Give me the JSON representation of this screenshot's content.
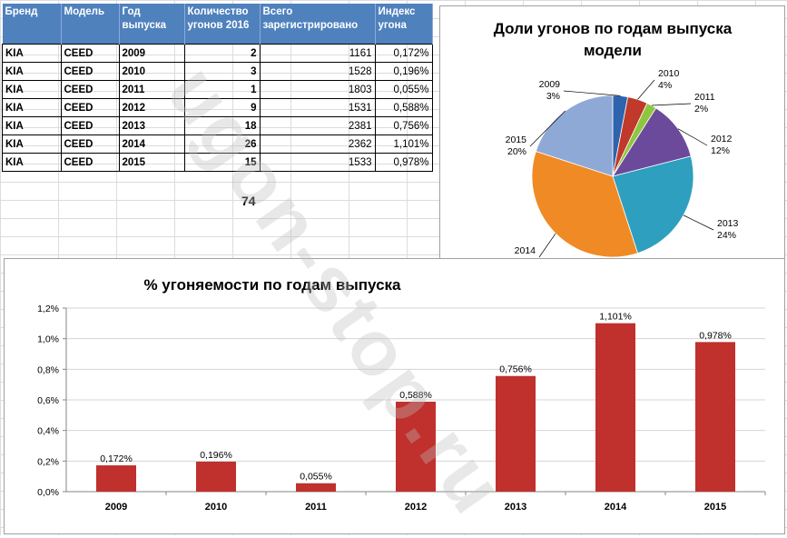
{
  "table": {
    "headers": [
      "Бренд",
      "Модель",
      "Год выпуска",
      "Количество угонов 2016",
      "Всего зарегистрировано",
      "Индекс угона"
    ],
    "rows": [
      {
        "brand": "KIA",
        "model": "CEED",
        "year": "2009",
        "thefts": "2",
        "registered": "1161",
        "index": "0,172%"
      },
      {
        "brand": "KIA",
        "model": "CEED",
        "year": "2010",
        "thefts": "3",
        "registered": "1528",
        "index": "0,196%"
      },
      {
        "brand": "KIA",
        "model": "CEED",
        "year": "2011",
        "thefts": "1",
        "registered": "1803",
        "index": "0,055%"
      },
      {
        "brand": "KIA",
        "model": "CEED",
        "year": "2012",
        "thefts": "9",
        "registered": "1531",
        "index": "0,588%"
      },
      {
        "brand": "KIA",
        "model": "CEED",
        "year": "2013",
        "thefts": "18",
        "registered": "2381",
        "index": "0,756%"
      },
      {
        "brand": "KIA",
        "model": "CEED",
        "year": "2014",
        "thefts": "26",
        "registered": "2362",
        "index": "1,101%"
      },
      {
        "brand": "KIA",
        "model": "CEED",
        "year": "2015",
        "thefts": "15",
        "registered": "1533",
        "index": "0,978%"
      }
    ],
    "total": "74"
  },
  "watermark": "ugon-stop.ru",
  "chart_data": [
    {
      "type": "pie",
      "title": "Доли угонов по годам выпуска модели",
      "title_lines": [
        "Доли угонов  по годам  выпуска",
        "модели"
      ],
      "labels": [
        "2009",
        "2010",
        "2011",
        "2012",
        "2013",
        "2014",
        "2015"
      ],
      "values": [
        3,
        4,
        2,
        12,
        24,
        35,
        20
      ],
      "percent_labels": [
        "3%",
        "4%",
        "2%",
        "12%",
        "24%",
        "35%",
        "20%"
      ],
      "colors": [
        "#2e63ad",
        "#c0392b",
        "#8fc63f",
        "#6b4a9b",
        "#2e9fbf",
        "#f08a24",
        "#8fa9d6"
      ]
    },
    {
      "type": "bar",
      "title": "% угоняемости  по годам  выпуска",
      "categories": [
        "2009",
        "2010",
        "2011",
        "2012",
        "2013",
        "2014",
        "2015"
      ],
      "values": [
        0.172,
        0.196,
        0.055,
        0.588,
        0.756,
        1.101,
        0.978
      ],
      "data_labels": [
        "0,172%",
        "0,196%",
        "0,055%",
        "0,588%",
        "0,756%",
        "1,101%",
        "0,978%"
      ],
      "yticks": [
        "0,0%",
        "0,2%",
        "0,4%",
        "0,6%",
        "0,8%",
        "1,0%",
        "1,2%"
      ],
      "ylim": [
        0,
        1.2
      ],
      "grid": true,
      "bar_color": "#c0302c"
    }
  ]
}
